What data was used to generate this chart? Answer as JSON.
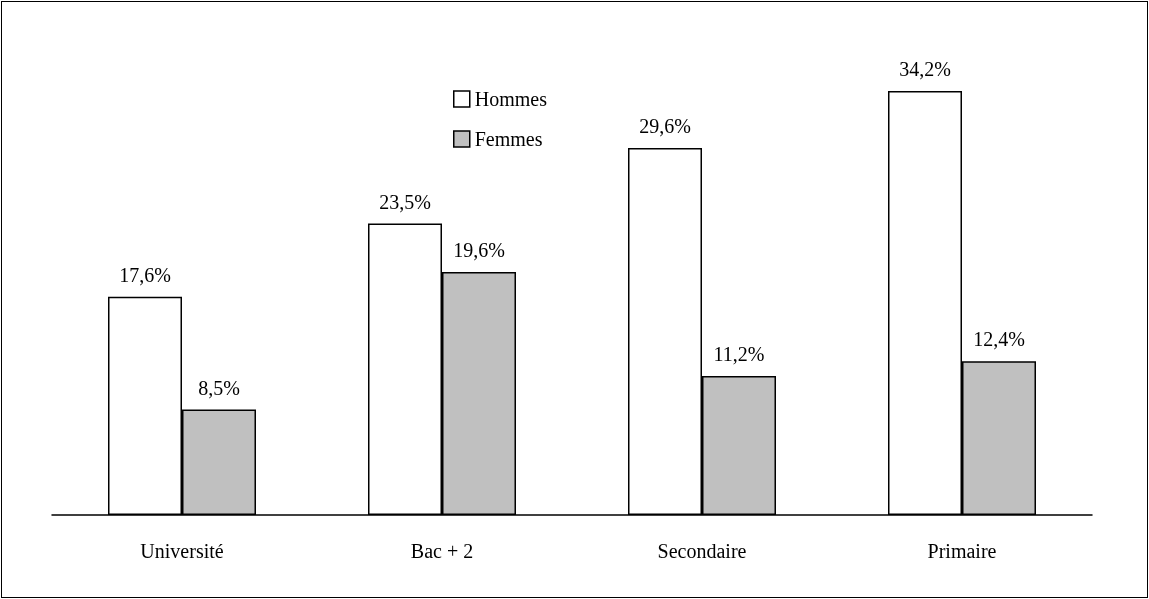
{
  "chart_data": {
    "type": "bar",
    "categories": [
      "Université",
      "Bac + 2",
      "Secondaire",
      "Primaire"
    ],
    "series": [
      {
        "name": "Hommes",
        "color": "#ffffff",
        "values": [
          17.6,
          23.5,
          29.6,
          34.2
        ],
        "value_labels": [
          "17,6%",
          "23,5%",
          "29,6%",
          "34,2%"
        ]
      },
      {
        "name": "Femmes",
        "color": "#c0c0c0",
        "values": [
          8.5,
          19.6,
          11.2,
          12.4
        ],
        "value_labels": [
          "8,5%",
          "19,6%",
          "11,2%",
          "12,4%"
        ]
      }
    ],
    "legend": "top"
  }
}
